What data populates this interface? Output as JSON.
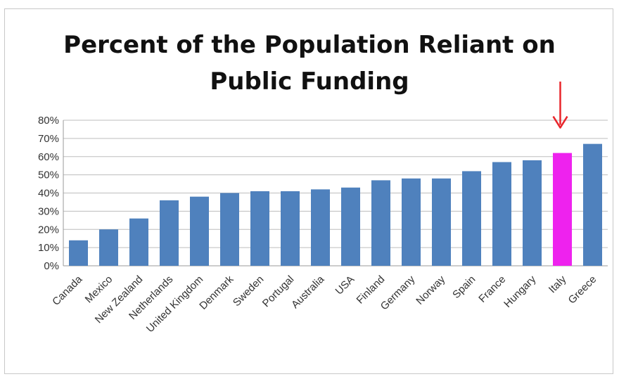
{
  "chart_data": {
    "type": "bar",
    "title_lines": [
      "Percent of the Population Reliant on",
      "Public Funding"
    ],
    "categories": [
      "Canada",
      "Mexico",
      "New Zealand",
      "Netherlands",
      "United Kingdom",
      "Denmark",
      "Sweden",
      "Portugal",
      "Australia",
      "USA",
      "Finland",
      "Germany",
      "Norway",
      "Spain",
      "France",
      "Hungary",
      "Italy",
      "Greece"
    ],
    "values": [
      14,
      20,
      26,
      36,
      38,
      40,
      41,
      41,
      42,
      43,
      47,
      48,
      48,
      52,
      57,
      58,
      62,
      67
    ],
    "ylim": [
      0,
      80
    ],
    "y_ticks": [
      "0%",
      "10%",
      "20%",
      "30%",
      "40%",
      "50%",
      "60%",
      "70%",
      "80%"
    ],
    "grid": true,
    "legend": "none",
    "bar_color": "#4f81bd",
    "highlight_category": "Italy",
    "highlight_color": "#ee22ee",
    "annotation": {
      "type": "arrow",
      "target": "Italy",
      "color": "#e8252b"
    }
  }
}
